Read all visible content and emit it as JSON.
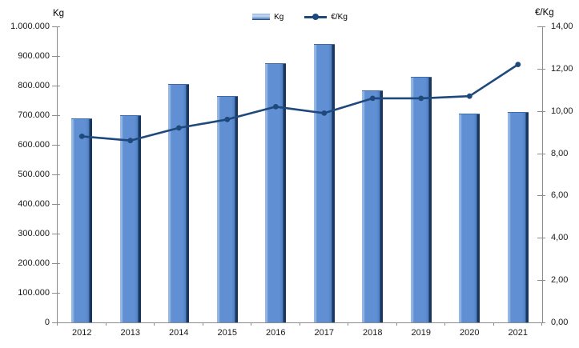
{
  "chart_data": {
    "type": "bar",
    "subtype": "bar+line combo, dual axis",
    "title": "",
    "categories": [
      "2012",
      "2013",
      "2014",
      "2015",
      "2016",
      "2017",
      "2018",
      "2019",
      "2020",
      "2021"
    ],
    "series": [
      {
        "name": "Kg",
        "type": "bar",
        "axis": "left",
        "values": [
          690000,
          700000,
          805000,
          765000,
          875000,
          940000,
          785000,
          830000,
          705000,
          710000
        ]
      },
      {
        "name": "€/Kg",
        "type": "line",
        "axis": "right",
        "values": [
          8.8,
          8.6,
          9.2,
          9.6,
          10.2,
          9.9,
          10.6,
          10.6,
          10.7,
          12.2
        ]
      }
    ],
    "left_axis": {
      "title": "Kg",
      "min": 0,
      "max": 1000000,
      "step": 100000,
      "tick_labels": [
        "1.000.000",
        "900.000",
        "800.000",
        "700.000",
        "600.000",
        "500.000",
        "400.000",
        "300.000",
        "200.000",
        "100.000",
        "0"
      ]
    },
    "right_axis": {
      "title": "€/Kg",
      "min": 0,
      "max": 14,
      "step": 2,
      "tick_labels": [
        "14,00",
        "12,00",
        "10,00",
        "8,00",
        "6,00",
        "4,00",
        "2,00",
        "0,00"
      ]
    },
    "legend": {
      "position": "top-center",
      "items": [
        {
          "label": "Kg",
          "swatch": "bar"
        },
        {
          "label": "€/Kg",
          "swatch": "line-with-marker"
        }
      ]
    },
    "grid": false,
    "colors": {
      "bar_fill": "#6090D3",
      "bar_fill_shade": "#4F7FC2",
      "bar_edge_light": "#96B8E4",
      "bar_edge_dark": "#17375E",
      "bar_top": "#3E6CA8",
      "line": "#1F497D",
      "axis": "#8C8C8C",
      "text": "#1a1a1a"
    }
  }
}
